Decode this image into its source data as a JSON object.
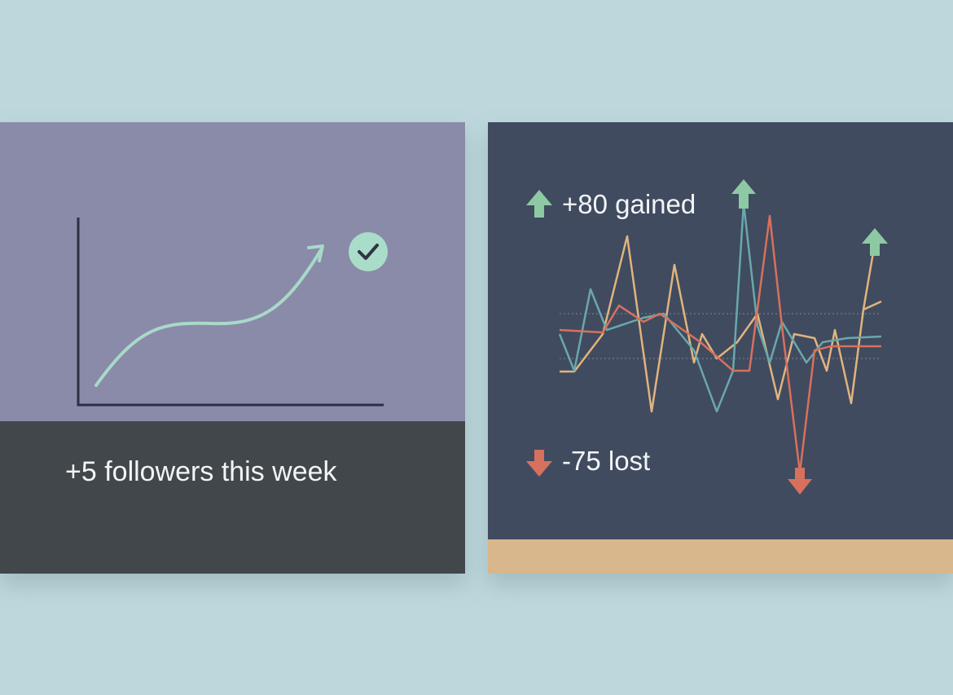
{
  "left_card": {
    "caption": "+5 followers this week"
  },
  "right_card": {
    "gained_label": "+80 gained",
    "lost_label": "-75 lost"
  }
}
